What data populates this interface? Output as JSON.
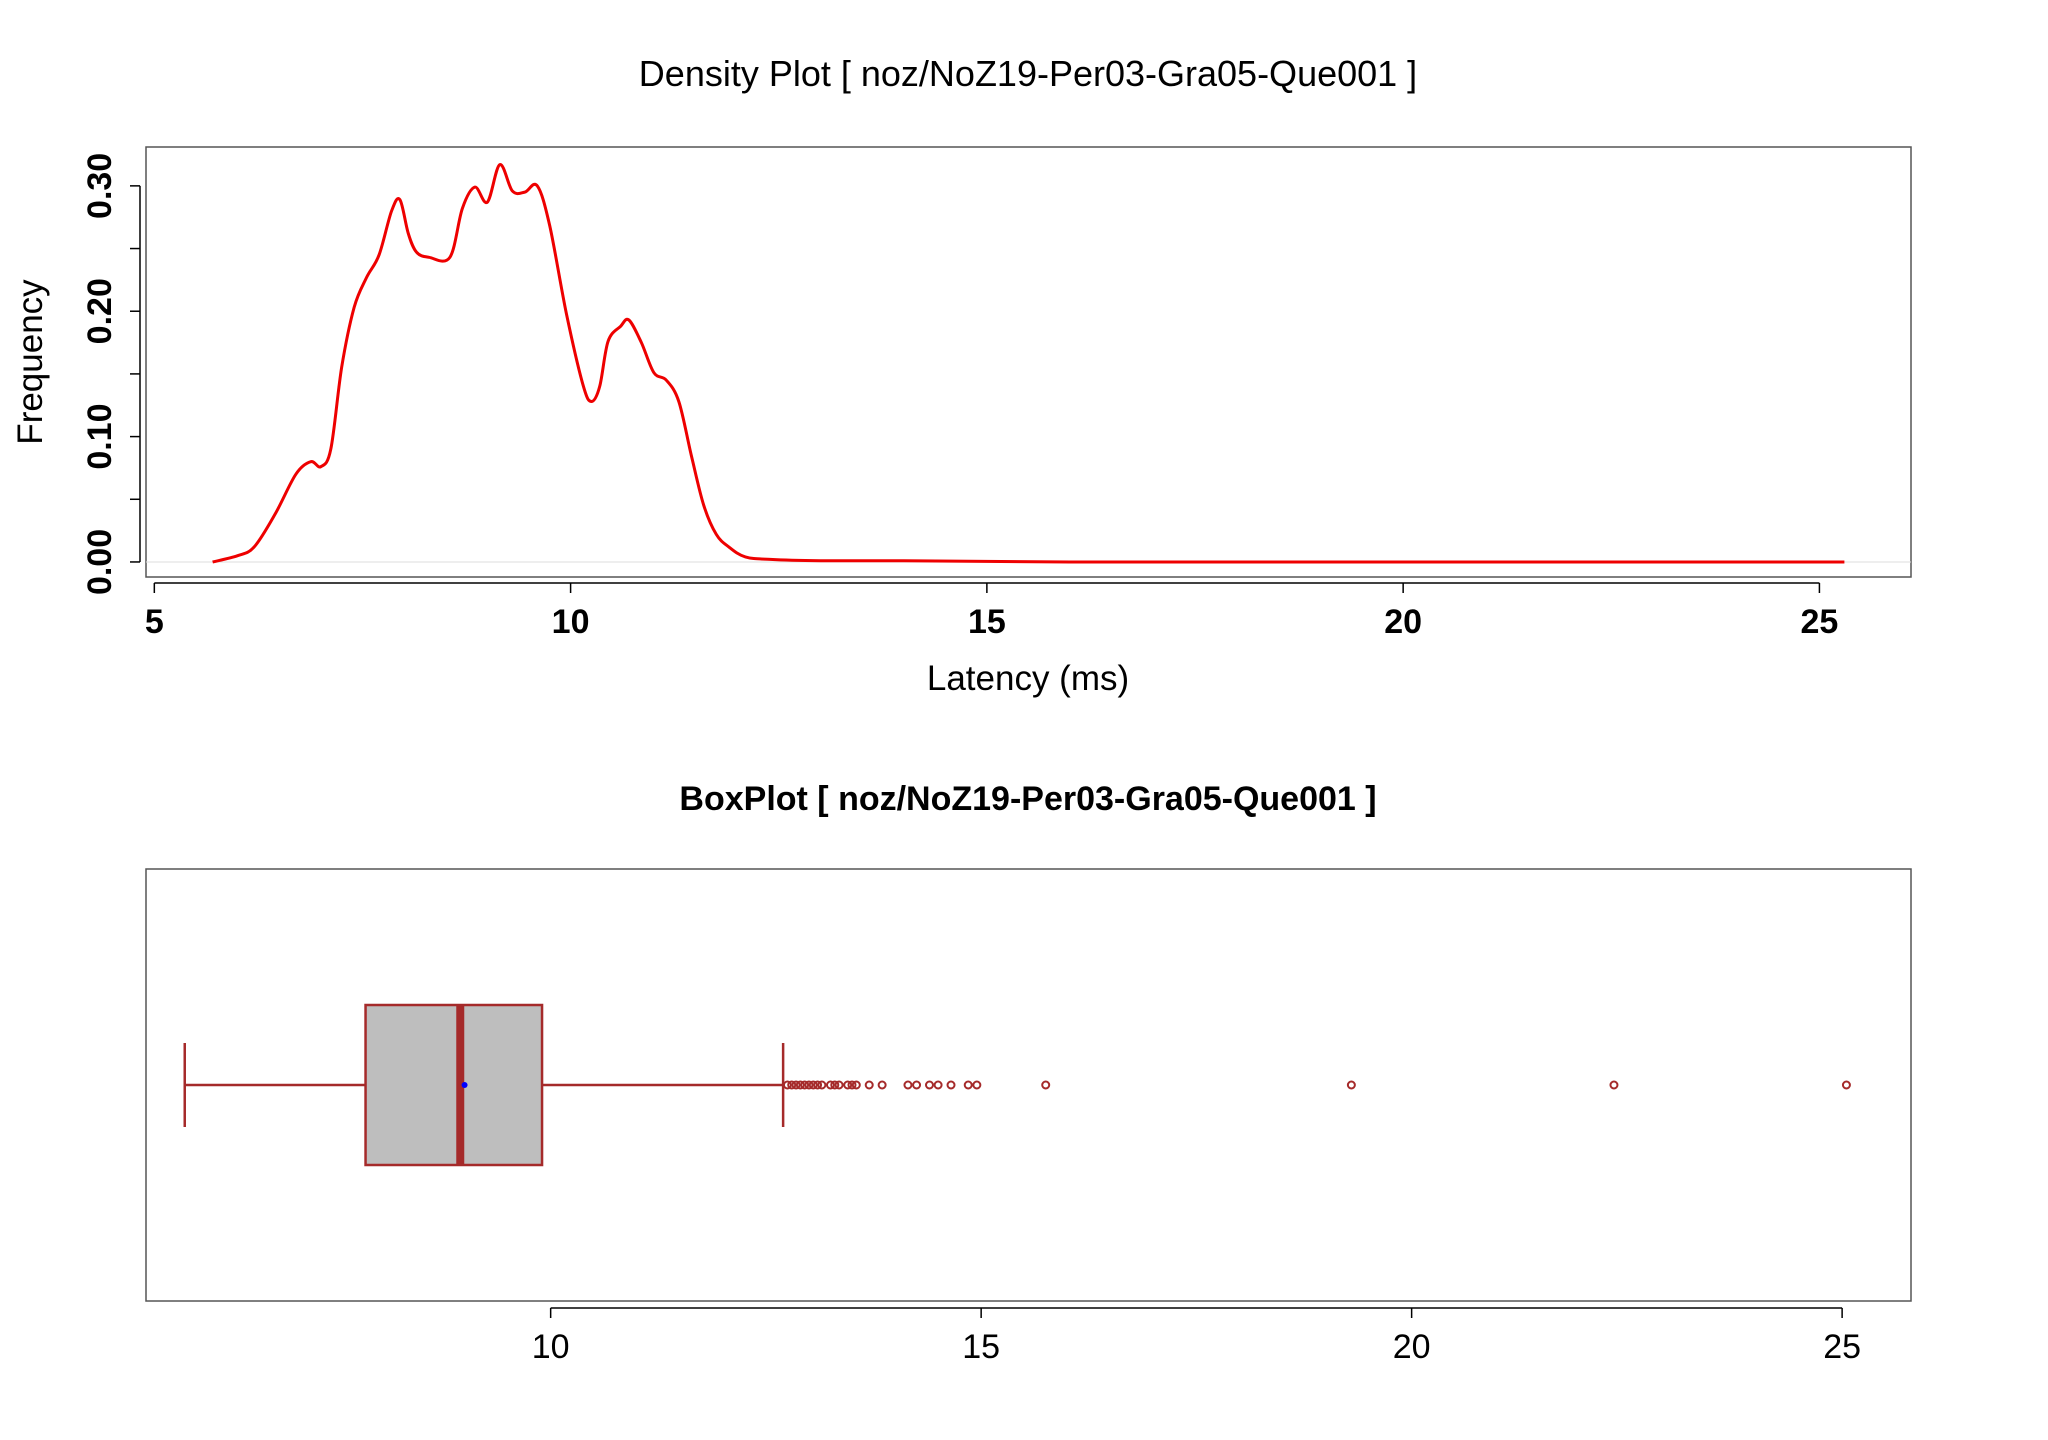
{
  "chart_data": [
    {
      "type": "line",
      "title": "Density Plot [ noz/NoZ19-Per03-Gra05-Que001 ]",
      "xlabel": "Latency (ms)",
      "ylabel": "Frequency",
      "xlim": [
        4.9,
        26.1
      ],
      "ylim": [
        -0.012,
        0.331
      ],
      "x_ticks": [
        5,
        10,
        15,
        20,
        25
      ],
      "x_tick_labels": [
        "5",
        "10",
        "15",
        "20",
        "25"
      ],
      "y_ticks": [
        0.0,
        0.05,
        0.1,
        0.15,
        0.2,
        0.25,
        0.3
      ],
      "y_tick_labels": [
        "0.00",
        "",
        "0.10",
        "",
        "0.20",
        "",
        "0.30"
      ],
      "grid": false,
      "line_color": "#ee0000",
      "series": [
        {
          "x": [
            5.7,
            6.0,
            6.2,
            6.45,
            6.7,
            6.88,
            7.0,
            7.12,
            7.25,
            7.4,
            7.55,
            7.7,
            7.85,
            7.95,
            8.05,
            8.15,
            8.3,
            8.55,
            8.7,
            8.85,
            9.0,
            9.15,
            9.3,
            9.45,
            9.6,
            9.75,
            9.95,
            10.15,
            10.25,
            10.35,
            10.45,
            10.6,
            10.7,
            10.85,
            11.0,
            11.15,
            11.3,
            11.45,
            11.6,
            11.75,
            11.9,
            12.1,
            12.4,
            13.0,
            14.0,
            16.0,
            20.0,
            25.3
          ],
          "y": [
            0.0,
            0.005,
            0.012,
            0.038,
            0.07,
            0.08,
            0.076,
            0.09,
            0.155,
            0.203,
            0.227,
            0.245,
            0.28,
            0.289,
            0.262,
            0.247,
            0.243,
            0.243,
            0.282,
            0.299,
            0.287,
            0.317,
            0.296,
            0.295,
            0.3,
            0.268,
            0.198,
            0.141,
            0.128,
            0.14,
            0.176,
            0.188,
            0.193,
            0.175,
            0.151,
            0.145,
            0.128,
            0.085,
            0.045,
            0.022,
            0.012,
            0.004,
            0.002,
            0.001,
            0.001,
            0.0,
            0.0,
            0.0
          ]
        }
      ]
    },
    {
      "type": "box",
      "title": "BoxPlot [ noz/NoZ19-Per03-Gra05-Que001 ]",
      "xlim": [
        5.3,
        25.8
      ],
      "x_ticks": [
        10,
        15,
        20,
        25
      ],
      "x_tick_labels": [
        "10",
        "15",
        "20",
        "25"
      ],
      "box_color": "#a52a2a",
      "box_fill": "#bebebe",
      "mean_color": "#0000ff",
      "whisker_low": 5.75,
      "q1": 7.85,
      "median": 8.95,
      "mean": 9.0,
      "q3": 9.9,
      "whisker_high": 12.7,
      "outliers": [
        12.75,
        12.8,
        12.85,
        12.9,
        12.95,
        13.0,
        13.05,
        13.1,
        13.15,
        13.25,
        13.3,
        13.35,
        13.45,
        13.5,
        13.55,
        13.7,
        13.85,
        14.15,
        14.25,
        14.4,
        14.5,
        14.65,
        14.85,
        14.95,
        15.75,
        19.3,
        22.35,
        25.05
      ]
    }
  ]
}
